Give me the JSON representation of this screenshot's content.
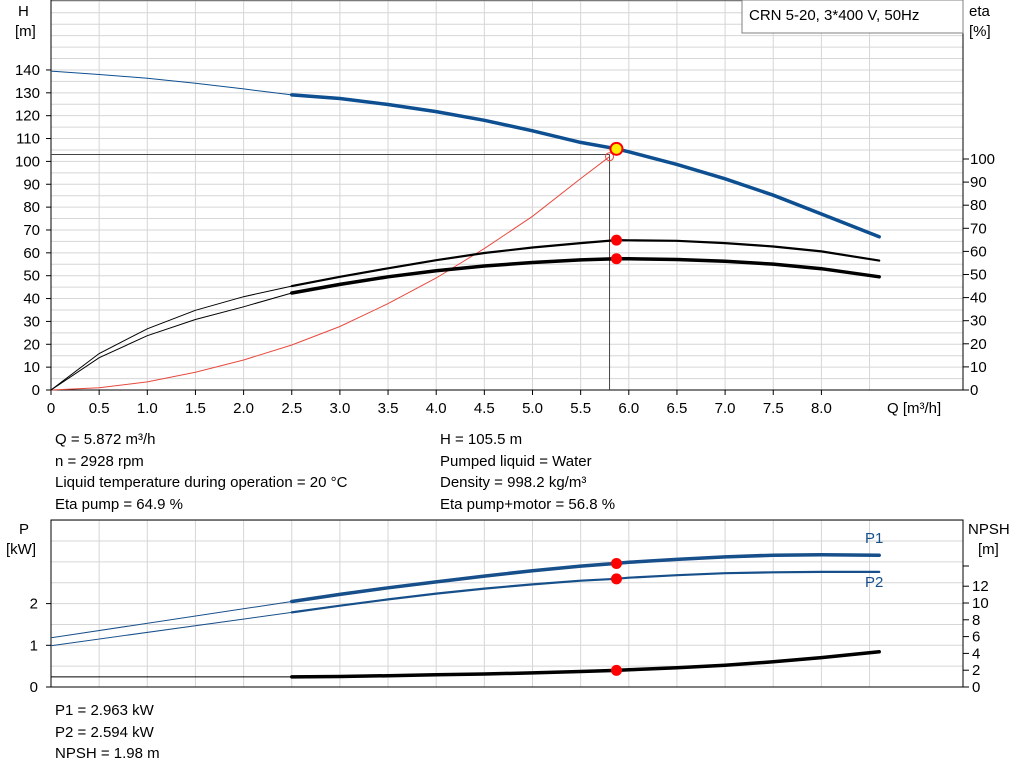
{
  "pump_title": "CRN 5-20, 3*400 V, 50Hz",
  "top_chart": {
    "left_unit_line1": "H",
    "left_unit_line2": "[m]",
    "right_unit_line1": "eta",
    "right_unit_line2": "[%]",
    "x_label": "Q [m³/h]",
    "x_ticks": [
      "0",
      "0.5",
      "1.0",
      "1.5",
      "2.0",
      "2.5",
      "3.0",
      "3.5",
      "4.0",
      "4.5",
      "5.0",
      "5.5",
      "6.0",
      "6.5",
      "7.0",
      "7.5",
      "8.0"
    ],
    "h_ticks": [
      "0",
      "10",
      "20",
      "30",
      "40",
      "50",
      "60",
      "70",
      "80",
      "90",
      "100",
      "110",
      "120",
      "130",
      "140"
    ],
    "eta_ticks": [
      "0",
      "10",
      "20",
      "30",
      "40",
      "50",
      "60",
      "70",
      "80",
      "90",
      "100"
    ]
  },
  "info_left": [
    "Q = 5.872 m³/h",
    "n = 2928 rpm",
    "Liquid temperature during operation = 20 °C",
    "Eta pump = 64.9 %"
  ],
  "info_right": [
    "H = 105.5 m",
    "Pumped liquid = Water",
    "Density = 998.2 kg/m³",
    "Eta pump+motor = 56.8 %"
  ],
  "bottom_chart": {
    "left_unit_line1": "P",
    "left_unit_line2": "[kW]",
    "right_unit_line1": "NPSH",
    "right_unit_line2": "[m]",
    "p_ticks": [
      "0",
      "1",
      "2"
    ],
    "npsh_ticks": [
      "0",
      "2",
      "4",
      "6",
      "8",
      "10",
      "12"
    ],
    "p1_label": "P1",
    "p2_label": "P2"
  },
  "info_bottom": [
    "P1 = 2.963 kW",
    "P2 = 2.594 kW",
    "NPSH = 1.98 m"
  ],
  "colors": {
    "head": "#0d4f91",
    "power": "#174f8a",
    "eta": "#000000",
    "system": "#e84a3f",
    "duty_point": "#ff0000",
    "grid": "#d6d6d6"
  },
  "chart_data": [
    {
      "type": "line",
      "title": "CRN 5-20, 3*400 V, 50Hz",
      "xlabel": "Q [m³/h]",
      "ylabel": "H [m]",
      "y2label": "eta [%]",
      "xlim": [
        0,
        8.5
      ],
      "ylim": [
        0,
        140
      ],
      "y2lim": [
        0,
        100
      ],
      "grid": true,
      "series": [
        {
          "name": "H",
          "axis": "y",
          "dashed_below": 2.5,
          "x": [
            0,
            0.5,
            1.0,
            1.5,
            2.0,
            2.5,
            3.0,
            3.5,
            4.0,
            4.5,
            5.0,
            5.5,
            5.872,
            6.0,
            6.5,
            7.0,
            7.5,
            8.0,
            8.6
          ],
          "y": [
            139.5,
            138.0,
            136.4,
            134.2,
            131.7,
            129.1,
            127.5,
            124.9,
            121.8,
            118.0,
            113.4,
            108.3,
            105.5,
            104.2,
            98.7,
            92.4,
            85.2,
            77.0,
            67.0
          ]
        },
        {
          "name": "Eta pump",
          "axis": "y2",
          "x": [
            0,
            0.5,
            1.0,
            1.5,
            2.0,
            2.5,
            3.0,
            3.5,
            4.0,
            4.5,
            5.0,
            5.5,
            5.872,
            6.0,
            6.5,
            7.0,
            7.5,
            8.0,
            8.6
          ],
          "y": [
            0,
            15.8,
            26.5,
            34.5,
            40.4,
            45.0,
            49.0,
            52.7,
            56.2,
            59.3,
            61.7,
            63.6,
            64.9,
            64.8,
            64.6,
            63.6,
            62.1,
            60.0,
            56.0
          ]
        },
        {
          "name": "Eta pump+motor",
          "axis": "y2",
          "x": [
            0,
            0.5,
            1.0,
            1.5,
            2.0,
            2.5,
            3.0,
            3.5,
            4.0,
            4.5,
            5.0,
            5.5,
            5.872,
            6.0,
            6.5,
            7.0,
            7.5,
            8.0,
            8.6
          ],
          "y": [
            0,
            14.0,
            23.5,
            30.5,
            36.0,
            42.0,
            45.7,
            49.0,
            51.6,
            53.7,
            55.2,
            56.3,
            56.8,
            56.8,
            56.5,
            55.7,
            54.5,
            52.5,
            49.0
          ]
        },
        {
          "name": "System curve",
          "axis": "y2",
          "x": [
            0,
            0.5,
            1.0,
            1.5,
            2.0,
            2.5,
            3.0,
            3.5,
            4.0,
            4.5,
            5.0,
            5.5,
            5.8
          ],
          "y": [
            0,
            1.0,
            3.5,
            7.7,
            13.0,
            19.5,
            27.5,
            37.4,
            48.5,
            61.2,
            75.2,
            91.5,
            101.0
          ]
        }
      ],
      "duty_point": {
        "Q": 5.872,
        "H": 105.5,
        "eta_pump": 64.9,
        "eta_total": 56.8
      },
      "reference_line": {
        "H": 103,
        "Q": 5.8
      }
    },
    {
      "type": "line",
      "xlabel": "Q [m³/h]",
      "ylabel": "P [kW]",
      "y2label": "NPSH [m]",
      "xlim": [
        0,
        8.5
      ],
      "ylim": [
        0,
        3.3
      ],
      "y2lim": [
        0,
        14
      ],
      "grid": true,
      "series": [
        {
          "name": "P1",
          "axis": "y",
          "x": [
            0,
            2.5,
            3.0,
            3.5,
            4.0,
            4.5,
            5.0,
            5.5,
            5.872,
            6.0,
            6.5,
            7.0,
            7.5,
            8.0,
            8.6
          ],
          "y": [
            1.18,
            2.05,
            2.22,
            2.38,
            2.52,
            2.66,
            2.79,
            2.9,
            2.963,
            2.99,
            3.06,
            3.12,
            3.16,
            3.17,
            3.16
          ]
        },
        {
          "name": "P2",
          "axis": "y",
          "x": [
            0,
            2.5,
            3.0,
            3.5,
            4.0,
            4.5,
            5.0,
            5.5,
            5.872,
            6.0,
            6.5,
            7.0,
            7.5,
            8.0,
            8.6
          ],
          "y": [
            0.99,
            1.79,
            1.95,
            2.1,
            2.24,
            2.36,
            2.46,
            2.55,
            2.594,
            2.62,
            2.68,
            2.73,
            2.75,
            2.76,
            2.76
          ]
        },
        {
          "name": "NPSH",
          "axis": "y2",
          "x": [
            0,
            2.5,
            3.0,
            3.5,
            4.0,
            4.5,
            5.0,
            5.5,
            5.872,
            6.0,
            6.5,
            7.0,
            7.5,
            8.0,
            8.6
          ],
          "y": [
            1.2,
            1.2,
            1.25,
            1.35,
            1.45,
            1.55,
            1.68,
            1.85,
            1.98,
            2.05,
            2.3,
            2.6,
            3.0,
            3.5,
            4.2
          ]
        }
      ],
      "duty_point": {
        "Q": 5.872,
        "P1": 2.963,
        "P2": 2.594,
        "NPSH": 1.98
      }
    }
  ]
}
